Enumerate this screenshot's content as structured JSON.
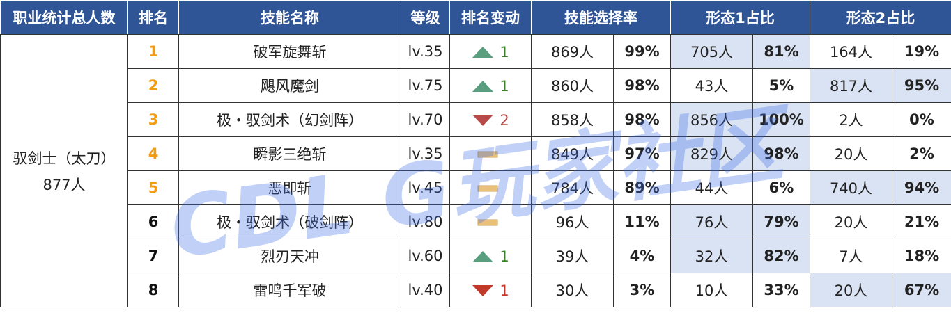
{
  "header": [
    "职业统计总人数",
    "排名",
    "技能名称",
    "等级",
    "排名变动",
    "技能选择率",
    "形态1占比",
    "形态2占比"
  ],
  "profession": {
    "name": "驭剑士（太刀）",
    "total": "877人"
  },
  "watermark": "CDL G玩家社区",
  "rows": [
    {
      "rank": "1",
      "rank_color": "#f39c12",
      "skill": "破军旋舞斩",
      "level": "lv.35",
      "change": {
        "dir": "up",
        "value": "1"
      },
      "select": [
        "869人",
        "99%"
      ],
      "form1": [
        "705人",
        "81%"
      ],
      "form2": [
        "164人",
        "19%"
      ],
      "highlight": "form1"
    },
    {
      "rank": "2",
      "rank_color": "#f39c12",
      "skill": "飓风魔剑",
      "level": "lv.75",
      "change": {
        "dir": "up",
        "value": "1"
      },
      "select": [
        "860人",
        "98%"
      ],
      "form1": [
        "43人",
        "5%"
      ],
      "form2": [
        "817人",
        "95%"
      ],
      "highlight": "form2"
    },
    {
      "rank": "3",
      "rank_color": "#f39c12",
      "skill": "极・驭剑术（幻剑阵）",
      "level": "lv.70",
      "change": {
        "dir": "down",
        "value": "2",
        "color": "#b94a4a"
      },
      "select": [
        "858人",
        "98%"
      ],
      "form1": [
        "856人",
        "100%"
      ],
      "form2": [
        "2人",
        "0%"
      ],
      "highlight": "form1"
    },
    {
      "rank": "4",
      "rank_color": "#f39c12",
      "skill": "瞬影三绝斩",
      "level": "lv.35",
      "change": {
        "dir": "same"
      },
      "select": [
        "849人",
        "97%"
      ],
      "form1": [
        "829人",
        "98%"
      ],
      "form2": [
        "20人",
        "2%"
      ],
      "highlight": "form1"
    },
    {
      "rank": "5",
      "rank_color": "#f39c12",
      "skill": "恶即斩",
      "level": "lv.45",
      "change": {
        "dir": "same"
      },
      "select": [
        "784人",
        "89%"
      ],
      "form1": [
        "44人",
        "6%"
      ],
      "form2": [
        "740人",
        "94%"
      ],
      "highlight": "form2"
    },
    {
      "rank": "6",
      "rank_color": "#111111",
      "skill": "极・驭剑术（破剑阵）",
      "level": "lv.80",
      "change": {
        "dir": "same"
      },
      "select": [
        "96人",
        "11%"
      ],
      "form1": [
        "76人",
        "79%"
      ],
      "form2": [
        "20人",
        "21%"
      ],
      "highlight": "form1"
    },
    {
      "rank": "7",
      "rank_color": "#111111",
      "skill": "烈刃天冲",
      "level": "lv.60",
      "change": {
        "dir": "up",
        "value": "1"
      },
      "select": [
        "39人",
        "4%"
      ],
      "form1": [
        "32人",
        "82%"
      ],
      "form2": [
        "7人",
        "18%"
      ],
      "highlight": "form1"
    },
    {
      "rank": "8",
      "rank_color": "#111111",
      "skill": "雷鸣千军破",
      "level": "lv.40",
      "change": {
        "dir": "down",
        "value": "1",
        "color": "#c0392b"
      },
      "select": [
        "30人",
        "3%"
      ],
      "form1": [
        "10人",
        "33%"
      ],
      "form2": [
        "20人",
        "67%"
      ],
      "highlight": "form2"
    }
  ]
}
